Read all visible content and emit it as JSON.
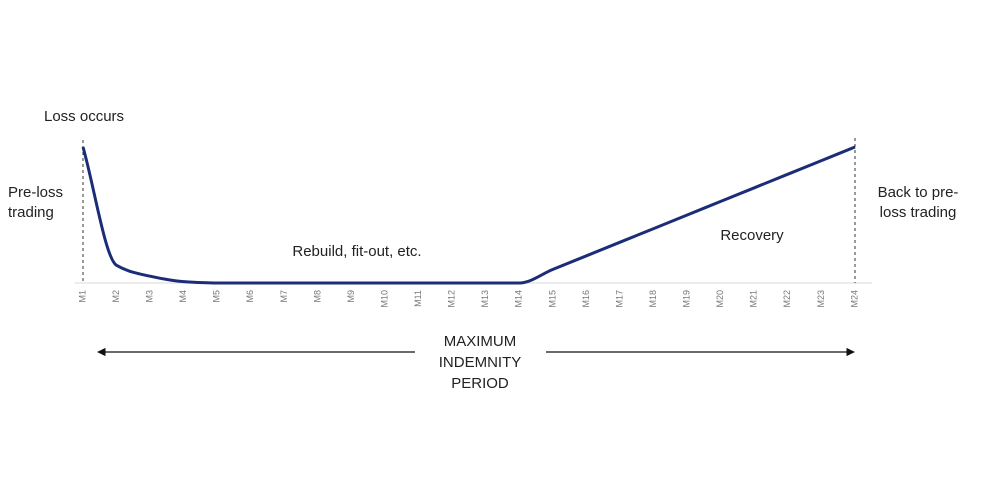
{
  "chart_data": {
    "type": "line",
    "categories": [
      "M1",
      "M2",
      "M3",
      "M4",
      "M5",
      "M6",
      "M7",
      "M8",
      "M9",
      "M10",
      "M11",
      "M12",
      "M13",
      "M14",
      "M15",
      "M16",
      "M17",
      "M18",
      "M19",
      "M20",
      "M21",
      "M22",
      "M23",
      "M24"
    ],
    "series": [
      {
        "color": "#1c2d78",
        "values": [
          100,
          13,
          5,
          1,
          0,
          0,
          0,
          0,
          0,
          0,
          0,
          0,
          0,
          0,
          10,
          20,
          30,
          40,
          50,
          60,
          70,
          80,
          90,
          100
        ]
      }
    ],
    "ylim": [
      0,
      100
    ],
    "annotations": [
      {
        "lines": [
          "Loss occurs"
        ]
      },
      {
        "lines": [
          "Pre-loss",
          "trading"
        ]
      },
      {
        "lines": [
          "Rebuild, fit-out, etc."
        ]
      },
      {
        "lines": [
          "Recovery"
        ]
      },
      {
        "lines": [
          "Back to pre-",
          "loss trading"
        ]
      },
      {
        "lines": [
          "MAXIMUM",
          "INDEMNITY",
          "PERIOD"
        ]
      }
    ]
  }
}
